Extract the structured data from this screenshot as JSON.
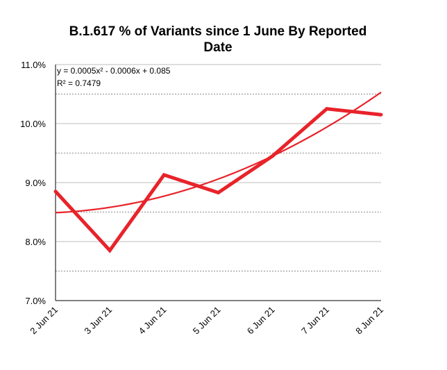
{
  "chart_data": {
    "type": "line",
    "title": "B.1.617 % of Variants since 1 June By Reported Date",
    "title_lines": [
      "B.1.617 % of Variants since 1 June By Reported",
      "Date"
    ],
    "xlabel": "",
    "ylabel": "",
    "categories": [
      "2 Jun 21",
      "3 Jun 21",
      "4 Jun 21",
      "5 Jun 21",
      "6 Jun 21",
      "7 Jun 21",
      "8 Jun 21"
    ],
    "series": [
      {
        "name": "B.1.617 %",
        "values": [
          8.85,
          7.85,
          9.13,
          8.83,
          9.45,
          10.25,
          10.15
        ],
        "color": "#e8232a"
      }
    ],
    "trendline": {
      "type": "polynomial",
      "order": 2,
      "coefficients": {
        "a": 0.0005,
        "b": -0.0006,
        "c": 0.085
      },
      "equation": "y = 0.0005x² - 0.0006x + 0.085",
      "r_squared": "R² = 0.7479",
      "color": "#e8232a"
    },
    "ylim": [
      7.0,
      11.0
    ],
    "y_ticks": [
      "7.0%",
      "8.0%",
      "9.0%",
      "10.0%",
      "11.0%"
    ],
    "y_tick_values": [
      7.0,
      8.0,
      9.0,
      10.0,
      11.0
    ],
    "y_minor_gridlines": [
      7.5,
      8.5,
      9.5,
      10.5
    ],
    "grid": true,
    "legend": "none"
  }
}
